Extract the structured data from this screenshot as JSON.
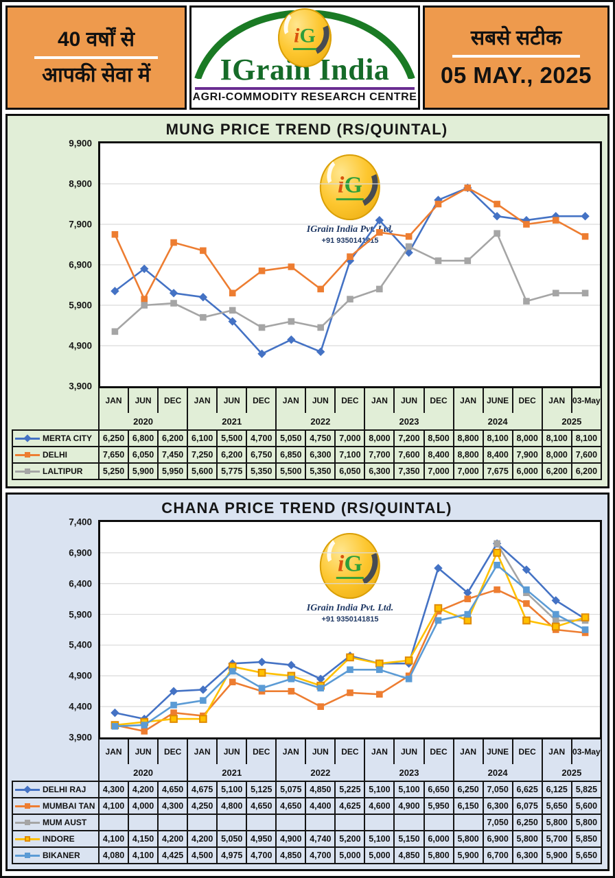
{
  "header": {
    "left": {
      "line1": "40 वर्षों से",
      "line2": "आपकी सेवा में"
    },
    "center": {
      "monogram_i": "i",
      "monogram_g": "G",
      "brand": "IGrain India",
      "tagline": "AGRI-COMMODITY RESEARCH CENTRE"
    },
    "right": {
      "line1": "सबसे सटीक",
      "date": "05 MAY., 2025"
    }
  },
  "watermark": {
    "monogram_i": "i",
    "monogram_g": "G",
    "company": "IGrain India Pvt. Ltd.",
    "phone": "+91 9350141815"
  },
  "colors": {
    "header_orange": "#EE9A4D",
    "mung_panel_bg": "#E1EED7",
    "chana_panel_bg": "#DAE3F1",
    "gridline": "#D9D9D9",
    "brand_green": "#156B28",
    "underline_purple": "#6A2D91",
    "watermark_navy": "#1F3864"
  },
  "chart_data": [
    {
      "type": "line",
      "title": "MUNG PRICE TREND (RS/QUINTAL)",
      "xlabel": "",
      "ylabel": "",
      "grid": true,
      "legend_position": "table-left",
      "months": [
        "JAN",
        "JUN",
        "DEC",
        "JAN",
        "JUN",
        "DEC",
        "JAN",
        "JUN",
        "DEC",
        "JAN",
        "JUN",
        "DEC",
        "JAN",
        "JUNE",
        "DEC",
        "JAN",
        "03-May"
      ],
      "year_groups": [
        {
          "label": "2020",
          "span": 3
        },
        {
          "label": "2021",
          "span": 3
        },
        {
          "label": "2022",
          "span": 3
        },
        {
          "label": "2023",
          "span": 3
        },
        {
          "label": "2024",
          "span": 3
        },
        {
          "label": "2025",
          "span": 2
        }
      ],
      "ylim": [
        3900,
        9900
      ],
      "yticks": [
        3900,
        4900,
        5900,
        6900,
        7900,
        8900,
        9900
      ],
      "series": [
        {
          "name": "MERTA CITY",
          "color": "#4472C4",
          "marker": "diamond",
          "values": [
            6250,
            6800,
            6200,
            6100,
            5500,
            4700,
            5050,
            4750,
            7000,
            8000,
            7200,
            8500,
            8800,
            8100,
            8000,
            8100,
            8100
          ]
        },
        {
          "name": "DELHI",
          "color": "#ED7D31",
          "marker": "square",
          "values": [
            7650,
            6050,
            7450,
            7250,
            6200,
            6750,
            6850,
            6300,
            7100,
            7700,
            7600,
            8400,
            8800,
            8400,
            7900,
            8000,
            7600
          ]
        },
        {
          "name": "LALTIPUR",
          "color": "#A5A5A5",
          "marker": "square",
          "values": [
            5250,
            5900,
            5950,
            5600,
            5775,
            5350,
            5500,
            5350,
            6050,
            6300,
            7350,
            7000,
            7000,
            7675,
            6000,
            6200,
            6200
          ]
        }
      ]
    },
    {
      "type": "line",
      "title": "CHANA PRICE TREND (RS/QUINTAL)",
      "xlabel": "",
      "ylabel": "",
      "grid": true,
      "legend_position": "table-left",
      "months": [
        "JAN",
        "JUN",
        "DEC",
        "JAN",
        "JUN",
        "DEC",
        "JAN",
        "JUN",
        "DEC",
        "JAN",
        "JUN",
        "DEC",
        "JAN",
        "JUNE",
        "DEC",
        "JAN",
        "03-May"
      ],
      "year_groups": [
        {
          "label": "2020",
          "span": 3
        },
        {
          "label": "2021",
          "span": 3
        },
        {
          "label": "2022",
          "span": 3
        },
        {
          "label": "2023",
          "span": 3
        },
        {
          "label": "2024",
          "span": 3
        },
        {
          "label": "2025",
          "span": 2
        }
      ],
      "ylim": [
        3900,
        7400
      ],
      "yticks": [
        3900,
        4400,
        4900,
        5400,
        5900,
        6400,
        6900,
        7400
      ],
      "series": [
        {
          "name": "DELHI RAJ",
          "color": "#4472C4",
          "marker": "diamond",
          "values": [
            4300,
            4200,
            4650,
            4675,
            5100,
            5125,
            5075,
            4850,
            5225,
            5100,
            5100,
            6650,
            6250,
            7050,
            6625,
            6125,
            5825
          ]
        },
        {
          "name": "MUMBAI TAN",
          "color": "#ED7D31",
          "marker": "square",
          "values": [
            4100,
            4000,
            4300,
            4250,
            4800,
            4650,
            4650,
            4400,
            4625,
            4600,
            4900,
            5950,
            6150,
            6300,
            6075,
            5650,
            5600
          ]
        },
        {
          "name": "MUM AUST",
          "color": "#A5A5A5",
          "marker": "square",
          "values": [
            null,
            null,
            null,
            null,
            null,
            null,
            null,
            null,
            null,
            null,
            null,
            null,
            null,
            7050,
            6250,
            5800,
            5800
          ]
        },
        {
          "name": "INDORE",
          "color": "#FFC000",
          "marker": "square",
          "marker_stroke": "#E08A00",
          "values": [
            4100,
            4150,
            4200,
            4200,
            5050,
            4950,
            4900,
            4740,
            5200,
            5100,
            5150,
            6000,
            5800,
            6900,
            5800,
            5700,
            5850
          ]
        },
        {
          "name": "BIKANER",
          "color": "#5B9BD5",
          "marker": "square",
          "values": [
            4080,
            4100,
            4425,
            4500,
            4975,
            4700,
            4850,
            4700,
            5000,
            5000,
            4850,
            5800,
            5900,
            6700,
            6300,
            5900,
            5650
          ]
        }
      ]
    }
  ]
}
